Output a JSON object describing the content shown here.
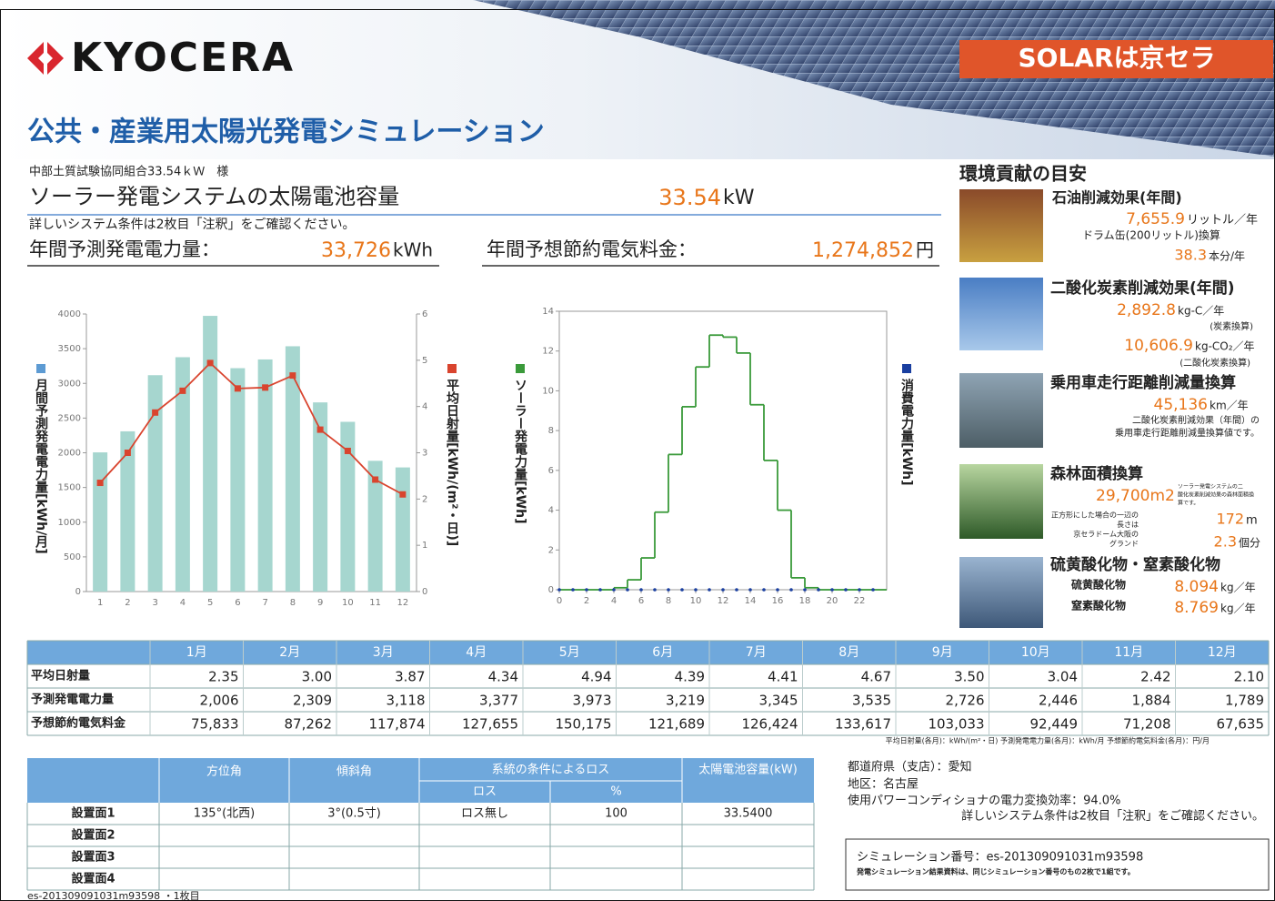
{
  "header": {
    "logo": "KYOCERA",
    "badge": "SOLARは京セラ",
    "title": "公共・産業用太陽光発電シミュレーション"
  },
  "summary": {
    "customer": "中部土質試験協同組合33.54ｋＷ　様",
    "capacity_label": "ソーラー発電システムの太陽電池容量",
    "capacity_value": "33.54",
    "capacity_unit": "kW",
    "note": "詳しいシステム条件は2枚目「注釈」をご確認ください。",
    "annual_gen_label": "年間予測発電電力量：",
    "annual_gen_value": "33,726",
    "annual_gen_unit": "kWh",
    "annual_saving_label": "年間予想節約電気料金：",
    "annual_saving_value": "1,274,852",
    "annual_saving_unit": "円"
  },
  "chart_data": [
    {
      "type": "bar",
      "categories": [
        "1",
        "2",
        "3",
        "4",
        "5",
        "6",
        "7",
        "8",
        "9",
        "10",
        "11",
        "12"
      ],
      "series": [
        {
          "name": "月間予測発電電力量[kWh/月]",
          "type": "bar",
          "color": "#a6d6cf",
          "values": [
            2006,
            2309,
            3118,
            3377,
            3973,
            3219,
            3345,
            3535,
            2726,
            2446,
            1884,
            1789
          ]
        },
        {
          "name": "平均日射量[kWh/(m²・日)]",
          "type": "line",
          "axis": "y2",
          "color": "#d9442e",
          "values": [
            2.35,
            3.0,
            3.87,
            4.34,
            4.94,
            4.39,
            4.41,
            4.67,
            3.5,
            3.04,
            2.42,
            2.1
          ]
        }
      ],
      "ylim": [
        0,
        4000
      ],
      "yticks": [
        0,
        500,
        1000,
        1500,
        2000,
        2500,
        3000,
        3500,
        4000
      ],
      "y2lim": [
        0,
        6
      ],
      "y2ticks": [
        0,
        1,
        2,
        3,
        4,
        5,
        6
      ]
    },
    {
      "type": "step",
      "x": [
        0,
        1,
        2,
        3,
        4,
        5,
        6,
        7,
        8,
        9,
        10,
        11,
        12,
        13,
        14,
        15,
        16,
        17,
        18,
        19,
        20,
        21,
        22,
        23
      ],
      "series": [
        {
          "name": "ソーラー発電力量[kWh]",
          "color": "#3a9a3a",
          "values": [
            0,
            0,
            0,
            0,
            0.1,
            0.5,
            1.6,
            3.9,
            6.8,
            9.2,
            11.2,
            12.8,
            12.7,
            11.9,
            9.3,
            6.5,
            4.0,
            0.6,
            0.1,
            0,
            0,
            0,
            0,
            0
          ]
        },
        {
          "name": "消費電力量[kWh]",
          "color": "#1a3fa0",
          "values": [
            0,
            0,
            0,
            0,
            0,
            0,
            0,
            0,
            0,
            0,
            0,
            0,
            0,
            0,
            0,
            0,
            0,
            0,
            0,
            0,
            0,
            0,
            0,
            0
          ]
        }
      ],
      "xlim": [
        0,
        24
      ],
      "xticks": [
        0,
        2,
        4,
        6,
        8,
        10,
        12,
        14,
        16,
        18,
        20,
        22
      ],
      "ylim": [
        0,
        14
      ],
      "yticks": [
        0,
        2,
        4,
        6,
        8,
        10,
        12,
        14
      ]
    }
  ],
  "environment": {
    "title": "環境貢献の目安",
    "oil": {
      "title": "石油削減効果(年間)",
      "value": "7,655.9",
      "unit": "リットル／年",
      "sub": "ドラム缶(200リットル)換算",
      "value2": "38.3",
      "unit2": "本分/年"
    },
    "co2": {
      "title": "二酸化炭素削減効果(年間)",
      "value": "2,892.8",
      "unit": "kg-C／年",
      "note": "(炭素換算)",
      "value2": "10,606.9",
      "unit2": "kg-CO₂／年",
      "note2": "(二酸化炭素換算)"
    },
    "car": {
      "title": "乗用車走行距離削減量換算",
      "value": "45,136",
      "unit": "km／年",
      "note": [
        "二酸化炭素削減効果（年間）の",
        "乗用車走行距離削減量換算値です。"
      ]
    },
    "forest": {
      "title": "森林面積換算",
      "value": "29,700m2",
      "note": [
        "ソーラー発電システムの二",
        "酸化炭素削減効果の森林面積換",
        "算です。"
      ],
      "square_note": [
        "正方形にした場合の一辺の",
        "長さは",
        "京セラドーム大阪の",
        "グランド"
      ],
      "side": "172",
      "side_unit": "m",
      "dome": "2.3",
      "dome_unit": "個分"
    },
    "sox": {
      "title": "硫黄酸化物・窒素酸化物",
      "rows": [
        {
          "label": "硫黄酸化物",
          "value": "8.094",
          "unit": "kg／年"
        },
        {
          "label": "窒素酸化物",
          "value": "8.769",
          "unit": "kg／年"
        }
      ]
    }
  },
  "monthly_table": {
    "columns": [
      "1月",
      "2月",
      "3月",
      "4月",
      "5月",
      "6月",
      "7月",
      "8月",
      "9月",
      "10月",
      "11月",
      "12月"
    ],
    "rows": [
      {
        "label": "平均日射量",
        "values": [
          "2.35",
          "3.00",
          "3.87",
          "4.34",
          "4.94",
          "4.39",
          "4.41",
          "4.67",
          "3.50",
          "3.04",
          "2.42",
          "2.10"
        ]
      },
      {
        "label": "予測発電電力量",
        "values": [
          "2,006",
          "2,309",
          "3,118",
          "3,377",
          "3,973",
          "3,219",
          "3,345",
          "3,535",
          "2,726",
          "2,446",
          "1,884",
          "1,789"
        ]
      },
      {
        "label": "予想節約電気料金",
        "values": [
          "75,833",
          "87,262",
          "117,874",
          "127,655",
          "150,175",
          "121,689",
          "126,424",
          "133,617",
          "103,033",
          "92,449",
          "71,208",
          "67,635"
        ]
      }
    ],
    "note": "平均日射量(各月)：kWh/(m²・日) 予測発電電力量(各月)：kWh/月 予想節約電気料金(各月)：円/月"
  },
  "install_table": {
    "headers": {
      "azimuth": "方位角",
      "tilt": "傾斜角",
      "loss_group": "系統の条件によるロス",
      "loss": "ロス",
      "percent": "%",
      "capacity": "太陽電池容量(kW)"
    },
    "rows": [
      {
        "label": "設置面1",
        "cells": [
          "135°(北西)",
          "3°(0.5寸)",
          "ロス無し",
          "100",
          "33.5400"
        ]
      },
      {
        "label": "設置面2"
      },
      {
        "label": "設置面3"
      },
      {
        "label": "設置面4"
      }
    ]
  },
  "info": {
    "prefecture": "都道府県（支店）：愛知",
    "district": "地区：名古屋",
    "efficiency": "使用パワーコンディショナの電力変換効率：94.0%",
    "note": "詳しいシステム条件は2枚目「注釈」をご確認ください。"
  },
  "simulation": {
    "number": "シミュレーション番号：es-201309091031m93598",
    "note": "発電シミュレーション結果資料は、同じシミュレーション番号のもの2枚で1組です。"
  },
  "footer": "es-201309091031m93598 ・1枚目"
}
